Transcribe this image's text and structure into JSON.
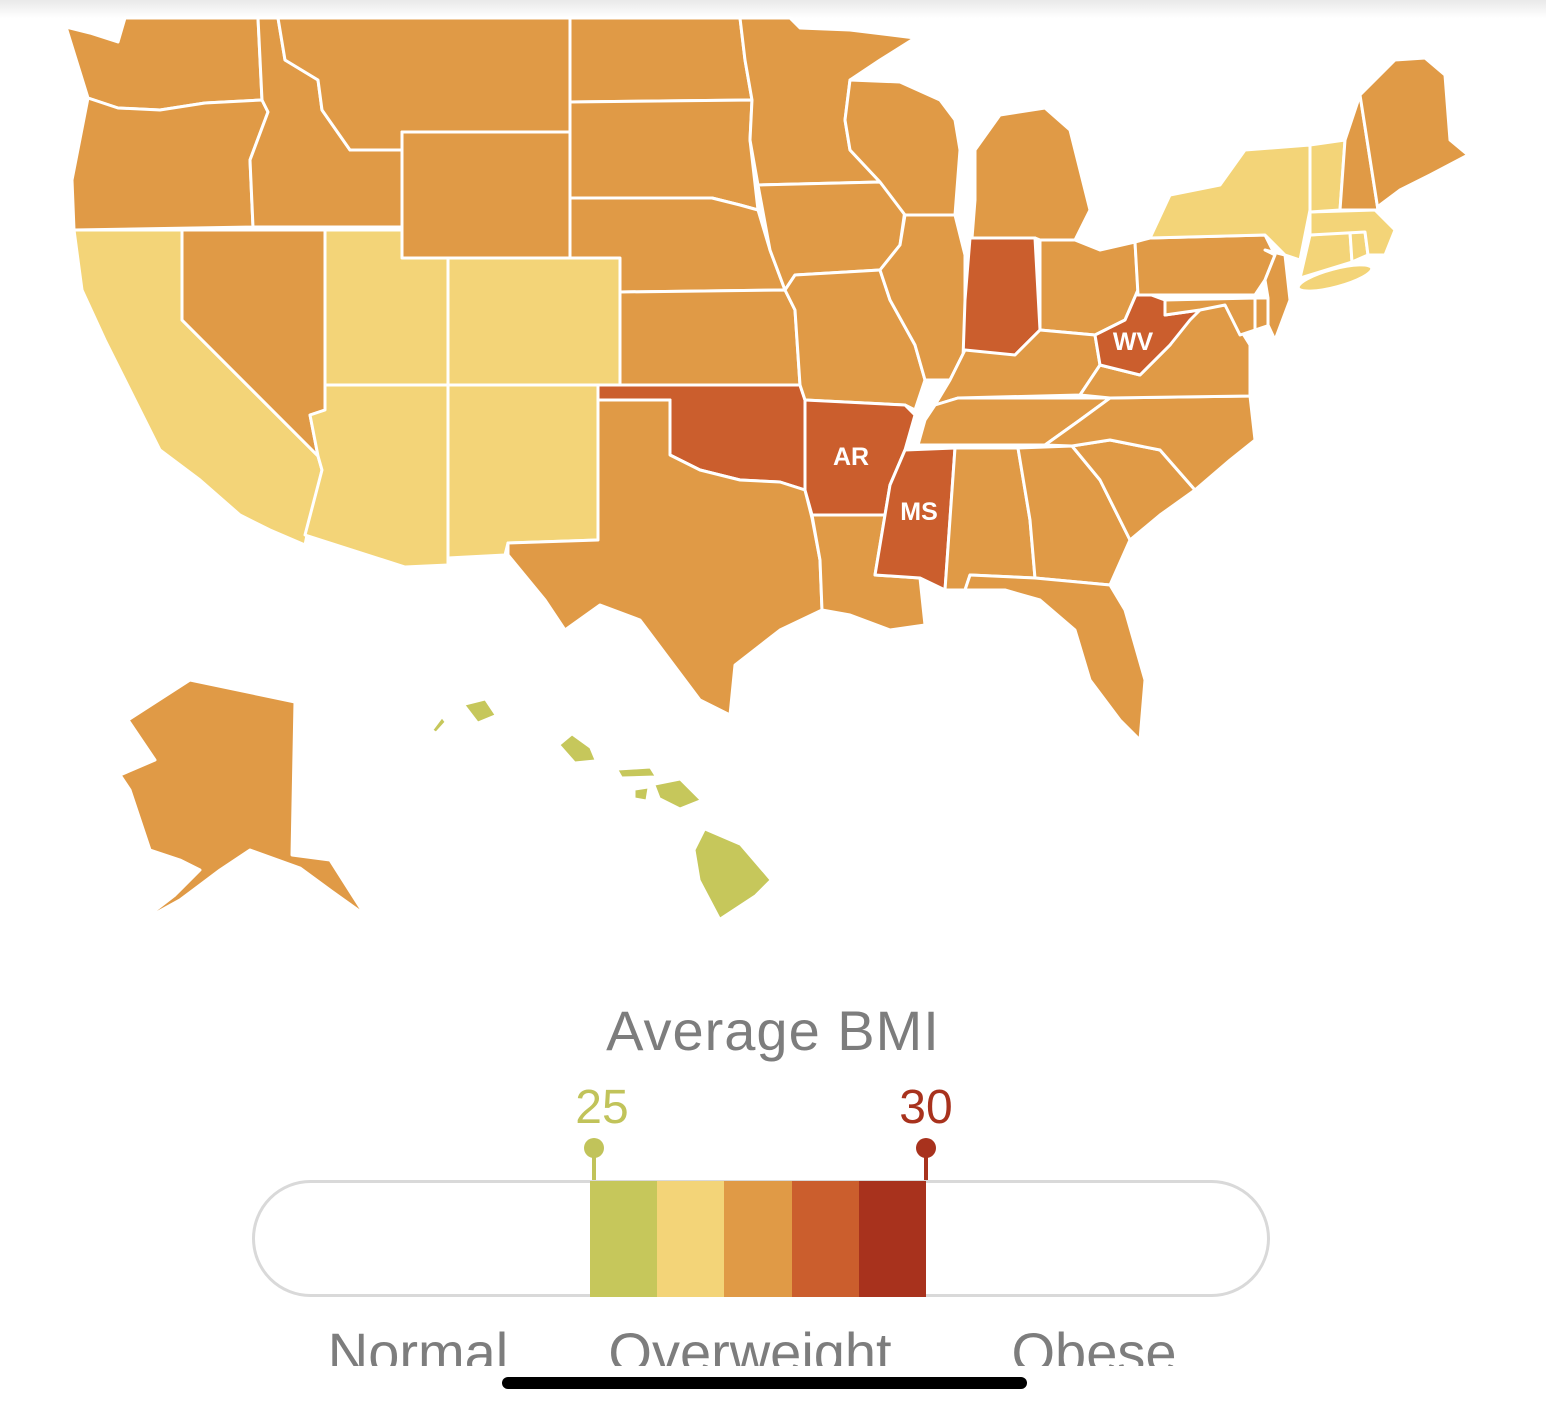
{
  "colors": {
    "bmi_25_26": "#c6c75b",
    "bmi_26_27": "#f3d478",
    "bmi_27_28": "#e09a46",
    "bmi_28_29": "#cb5e2d",
    "bmi_29_30": "#a8321d",
    "tick_25": "#c1c35a",
    "tick_30": "#a8321d"
  },
  "map": {
    "highlighted_state_labels": [
      "AR",
      "MS",
      "WV"
    ],
    "state_shading": {
      "WA": "bmi_27_28",
      "OR": "bmi_27_28",
      "CA": "bmi_26_27",
      "NV": "bmi_27_28",
      "ID": "bmi_27_28",
      "MT": "bmi_27_28",
      "WY": "bmi_27_28",
      "UT": "bmi_26_27",
      "AZ": "bmi_26_27",
      "CO": "bmi_26_27",
      "NM": "bmi_26_27",
      "ND": "bmi_27_28",
      "SD": "bmi_27_28",
      "NE": "bmi_27_28",
      "KS": "bmi_27_28",
      "OK": "bmi_28_29",
      "TX": "bmi_27_28",
      "MN": "bmi_27_28",
      "IA": "bmi_27_28",
      "MO": "bmi_27_28",
      "AR": "bmi_28_29",
      "LA": "bmi_27_28",
      "WI": "bmi_27_28",
      "IL": "bmi_27_28",
      "MI": "bmi_27_28",
      "IN": "bmi_28_29",
      "OH": "bmi_27_28",
      "KY": "bmi_27_28",
      "TN": "bmi_27_28",
      "MS": "bmi_28_29",
      "AL": "bmi_27_28",
      "GA": "bmi_27_28",
      "FL": "bmi_27_28",
      "SC": "bmi_27_28",
      "NC": "bmi_27_28",
      "VA": "bmi_27_28",
      "WV": "bmi_28_29",
      "PA": "bmi_27_28",
      "NY": "bmi_26_27",
      "NJ": "bmi_27_28",
      "DE": "bmi_27_28",
      "MD": "bmi_27_28",
      "CT": "bmi_26_27",
      "RI": "bmi_26_27",
      "MA": "bmi_26_27",
      "VT": "bmi_26_27",
      "NH": "bmi_27_28",
      "ME": "bmi_27_28",
      "AK": "bmi_27_28",
      "HI": "bmi_25_26"
    }
  },
  "legend": {
    "title": "Average BMI",
    "ticks": [
      {
        "label": "25",
        "value": 25,
        "color_key": "tick_25"
      },
      {
        "label": "30",
        "value": 30,
        "color_key": "tick_30"
      }
    ],
    "bands": [
      {
        "from": 25.0,
        "to": 26.0,
        "color_key": "bmi_25_26"
      },
      {
        "from": 26.0,
        "to": 27.0,
        "color_key": "bmi_26_27"
      },
      {
        "from": 27.0,
        "to": 28.0,
        "color_key": "bmi_27_28"
      },
      {
        "from": 28.0,
        "to": 29.0,
        "color_key": "bmi_28_29"
      },
      {
        "from": 29.0,
        "to": 30.0,
        "color_key": "bmi_29_30"
      }
    ],
    "categories": [
      "Normal",
      "Overweight",
      "Obese"
    ]
  }
}
